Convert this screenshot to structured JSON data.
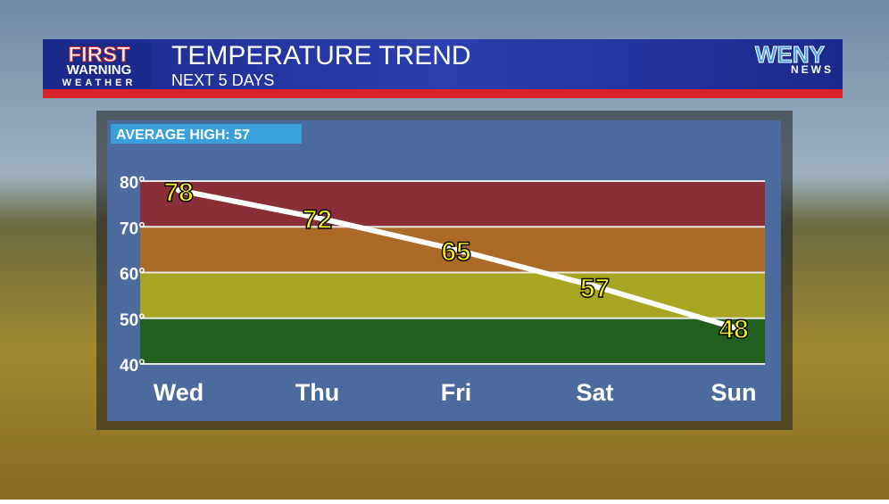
{
  "header": {
    "title": "TEMPERATURE TREND",
    "subtitle": "NEXT 5 DAYS",
    "logo_left": [
      "FIRST",
      "WARNING",
      "WEATHER"
    ],
    "logo_right": [
      "WENY",
      "NEWS"
    ]
  },
  "chart_data": {
    "type": "line",
    "annotation": "AVERAGE HIGH: 57",
    "categories": [
      "Wed",
      "Thu",
      "Fri",
      "Sat",
      "Sun"
    ],
    "values": [
      78,
      72,
      65,
      57,
      48
    ],
    "color": "#ffffff",
    "label_color": "#f5ee1c",
    "ylim": [
      40,
      80
    ],
    "yticks": [
      {
        "value": 40,
        "label": "40°"
      },
      {
        "value": 50,
        "label": "50°"
      },
      {
        "value": 60,
        "label": "60°"
      },
      {
        "value": 70,
        "label": "70°"
      },
      {
        "value": 80,
        "label": "80°"
      }
    ],
    "bands": [
      {
        "from": 40,
        "to": 50,
        "color": "#225e1d"
      },
      {
        "from": 50,
        "to": 60,
        "color": "#a6a623"
      },
      {
        "from": 60,
        "to": 70,
        "color": "#ab6a25"
      },
      {
        "from": 70,
        "to": 80,
        "color": "#8a2f38"
      }
    ],
    "grid": true
  }
}
